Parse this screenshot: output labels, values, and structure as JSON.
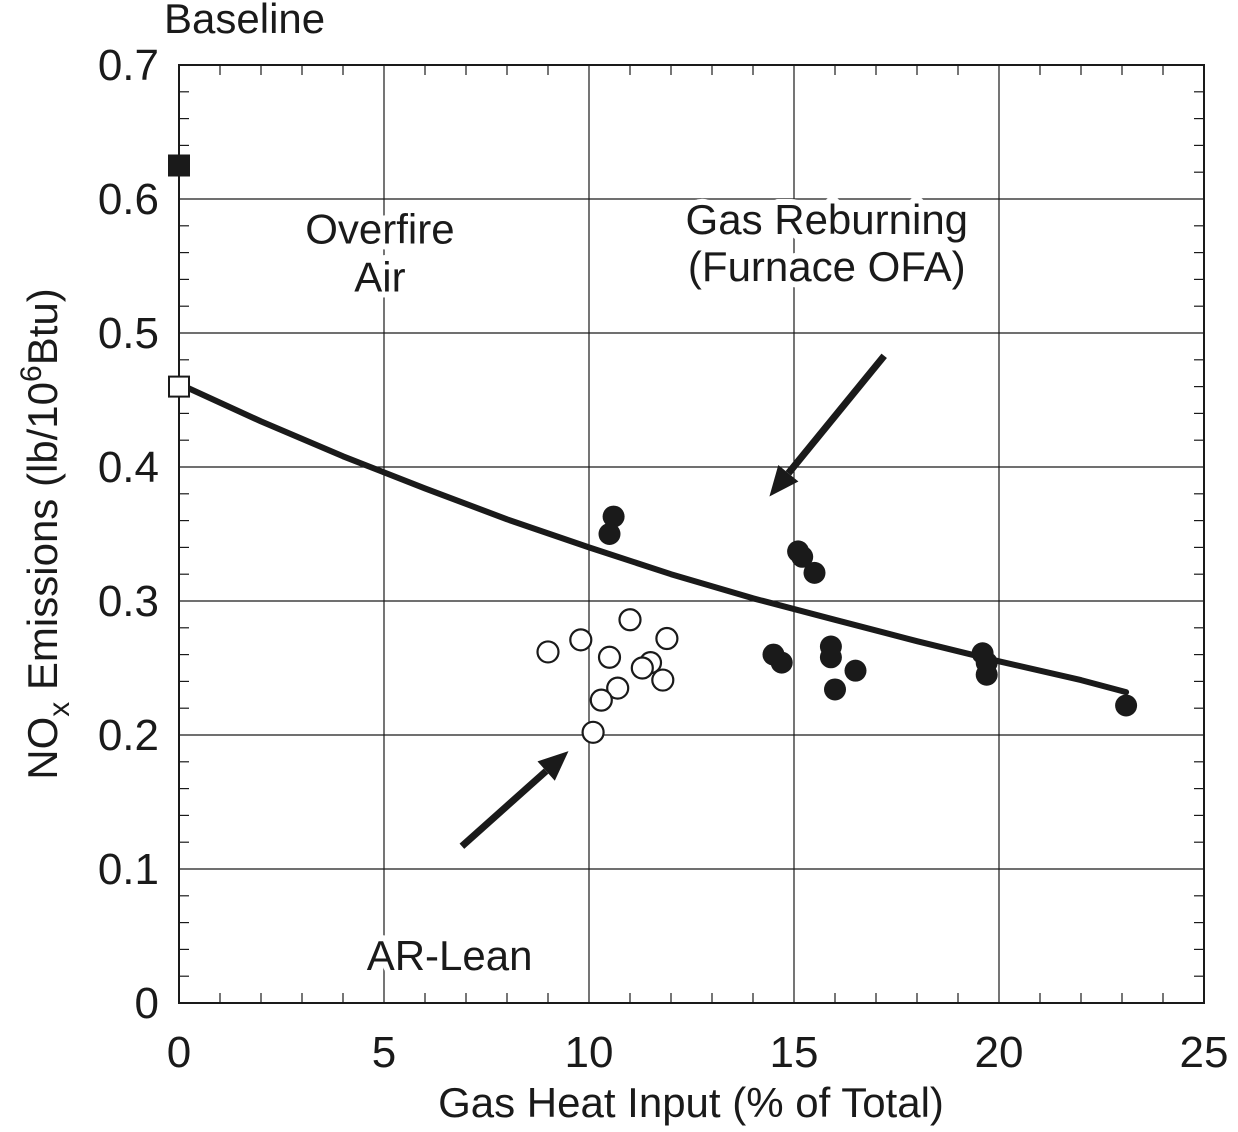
{
  "chart_data": {
    "type": "scatter",
    "xlabel": "Gas Heat Input (% of Total)",
    "ylabel": {
      "prefix": "NO",
      "sub": "x",
      "mid": " Emissions (lb/10",
      "sup": "6",
      "suffix": "Btu)"
    },
    "xlim": [
      0,
      25
    ],
    "ylim": [
      0,
      0.7
    ],
    "xticks": [
      0,
      5,
      10,
      15,
      20,
      25
    ],
    "xtick_labels": [
      "0",
      "5",
      "10",
      "15",
      "20",
      "25"
    ],
    "yticks": [
      0,
      0.1,
      0.2,
      0.3,
      0.4,
      0.5,
      0.6,
      0.7
    ],
    "ytick_labels": [
      "0",
      "0.1",
      "0.2",
      "0.3",
      "0.4",
      "0.5",
      "0.6",
      "0.7"
    ],
    "grid": true,
    "series": [
      {
        "marker": "filled-square",
        "points": [
          [
            0,
            0.625
          ]
        ]
      },
      {
        "marker": "open-square",
        "points": [
          [
            0,
            0.46
          ]
        ]
      },
      {
        "marker": "filled-circle",
        "points": [
          [
            10.6,
            0.363
          ],
          [
            10.5,
            0.35
          ],
          [
            15.1,
            0.337
          ],
          [
            15.2,
            0.333
          ],
          [
            15.5,
            0.321
          ],
          [
            14.5,
            0.26
          ],
          [
            14.7,
            0.254
          ],
          [
            15.9,
            0.266
          ],
          [
            15.9,
            0.258
          ],
          [
            16.0,
            0.234
          ],
          [
            16.5,
            0.248
          ],
          [
            19.6,
            0.261
          ],
          [
            19.7,
            0.254
          ],
          [
            19.7,
            0.245
          ],
          [
            23.1,
            0.222
          ]
        ]
      },
      {
        "marker": "open-circle",
        "points": [
          [
            9.0,
            0.262
          ],
          [
            9.8,
            0.271
          ],
          [
            10.5,
            0.258
          ],
          [
            11.0,
            0.286
          ],
          [
            11.9,
            0.272
          ],
          [
            11.5,
            0.254
          ],
          [
            11.3,
            0.25
          ],
          [
            11.8,
            0.241
          ],
          [
            10.7,
            0.235
          ],
          [
            10.3,
            0.226
          ],
          [
            10.1,
            0.202
          ]
        ]
      },
      {
        "marker": "line",
        "points": [
          [
            0,
            0.462
          ],
          [
            2,
            0.434
          ],
          [
            4,
            0.408
          ],
          [
            6,
            0.384
          ],
          [
            8,
            0.361
          ],
          [
            10,
            0.34
          ],
          [
            12,
            0.32
          ],
          [
            14,
            0.302
          ],
          [
            16,
            0.286
          ],
          [
            18,
            0.27
          ],
          [
            20,
            0.255
          ],
          [
            22,
            0.241
          ],
          [
            23.1,
            0.232
          ]
        ]
      }
    ],
    "annotations": [
      {
        "text": "Baseline",
        "x": 1.6,
        "y": 0.735
      },
      {
        "text": "Overfire",
        "x": 4.9,
        "y": 0.578
      },
      {
        "text": "Air",
        "x": 4.9,
        "y": 0.542
      },
      {
        "text": "Gas Reburning",
        "x": 15.8,
        "y": 0.585
      },
      {
        "text": "(Furnace OFA)",
        "x": 15.8,
        "y": 0.55
      },
      {
        "text": "AR-Lean",
        "x": 6.6,
        "y": 0.036
      }
    ],
    "arrows": [
      {
        "from": [
          17.2,
          0.483
        ],
        "to": [
          14.4,
          0.378
        ]
      },
      {
        "from": [
          6.9,
          0.117
        ],
        "to": [
          9.5,
          0.188
        ]
      }
    ],
    "colors": {
      "ink": "#1a1a1a",
      "grid": "#1a1a1a",
      "background": "#ffffff"
    }
  }
}
